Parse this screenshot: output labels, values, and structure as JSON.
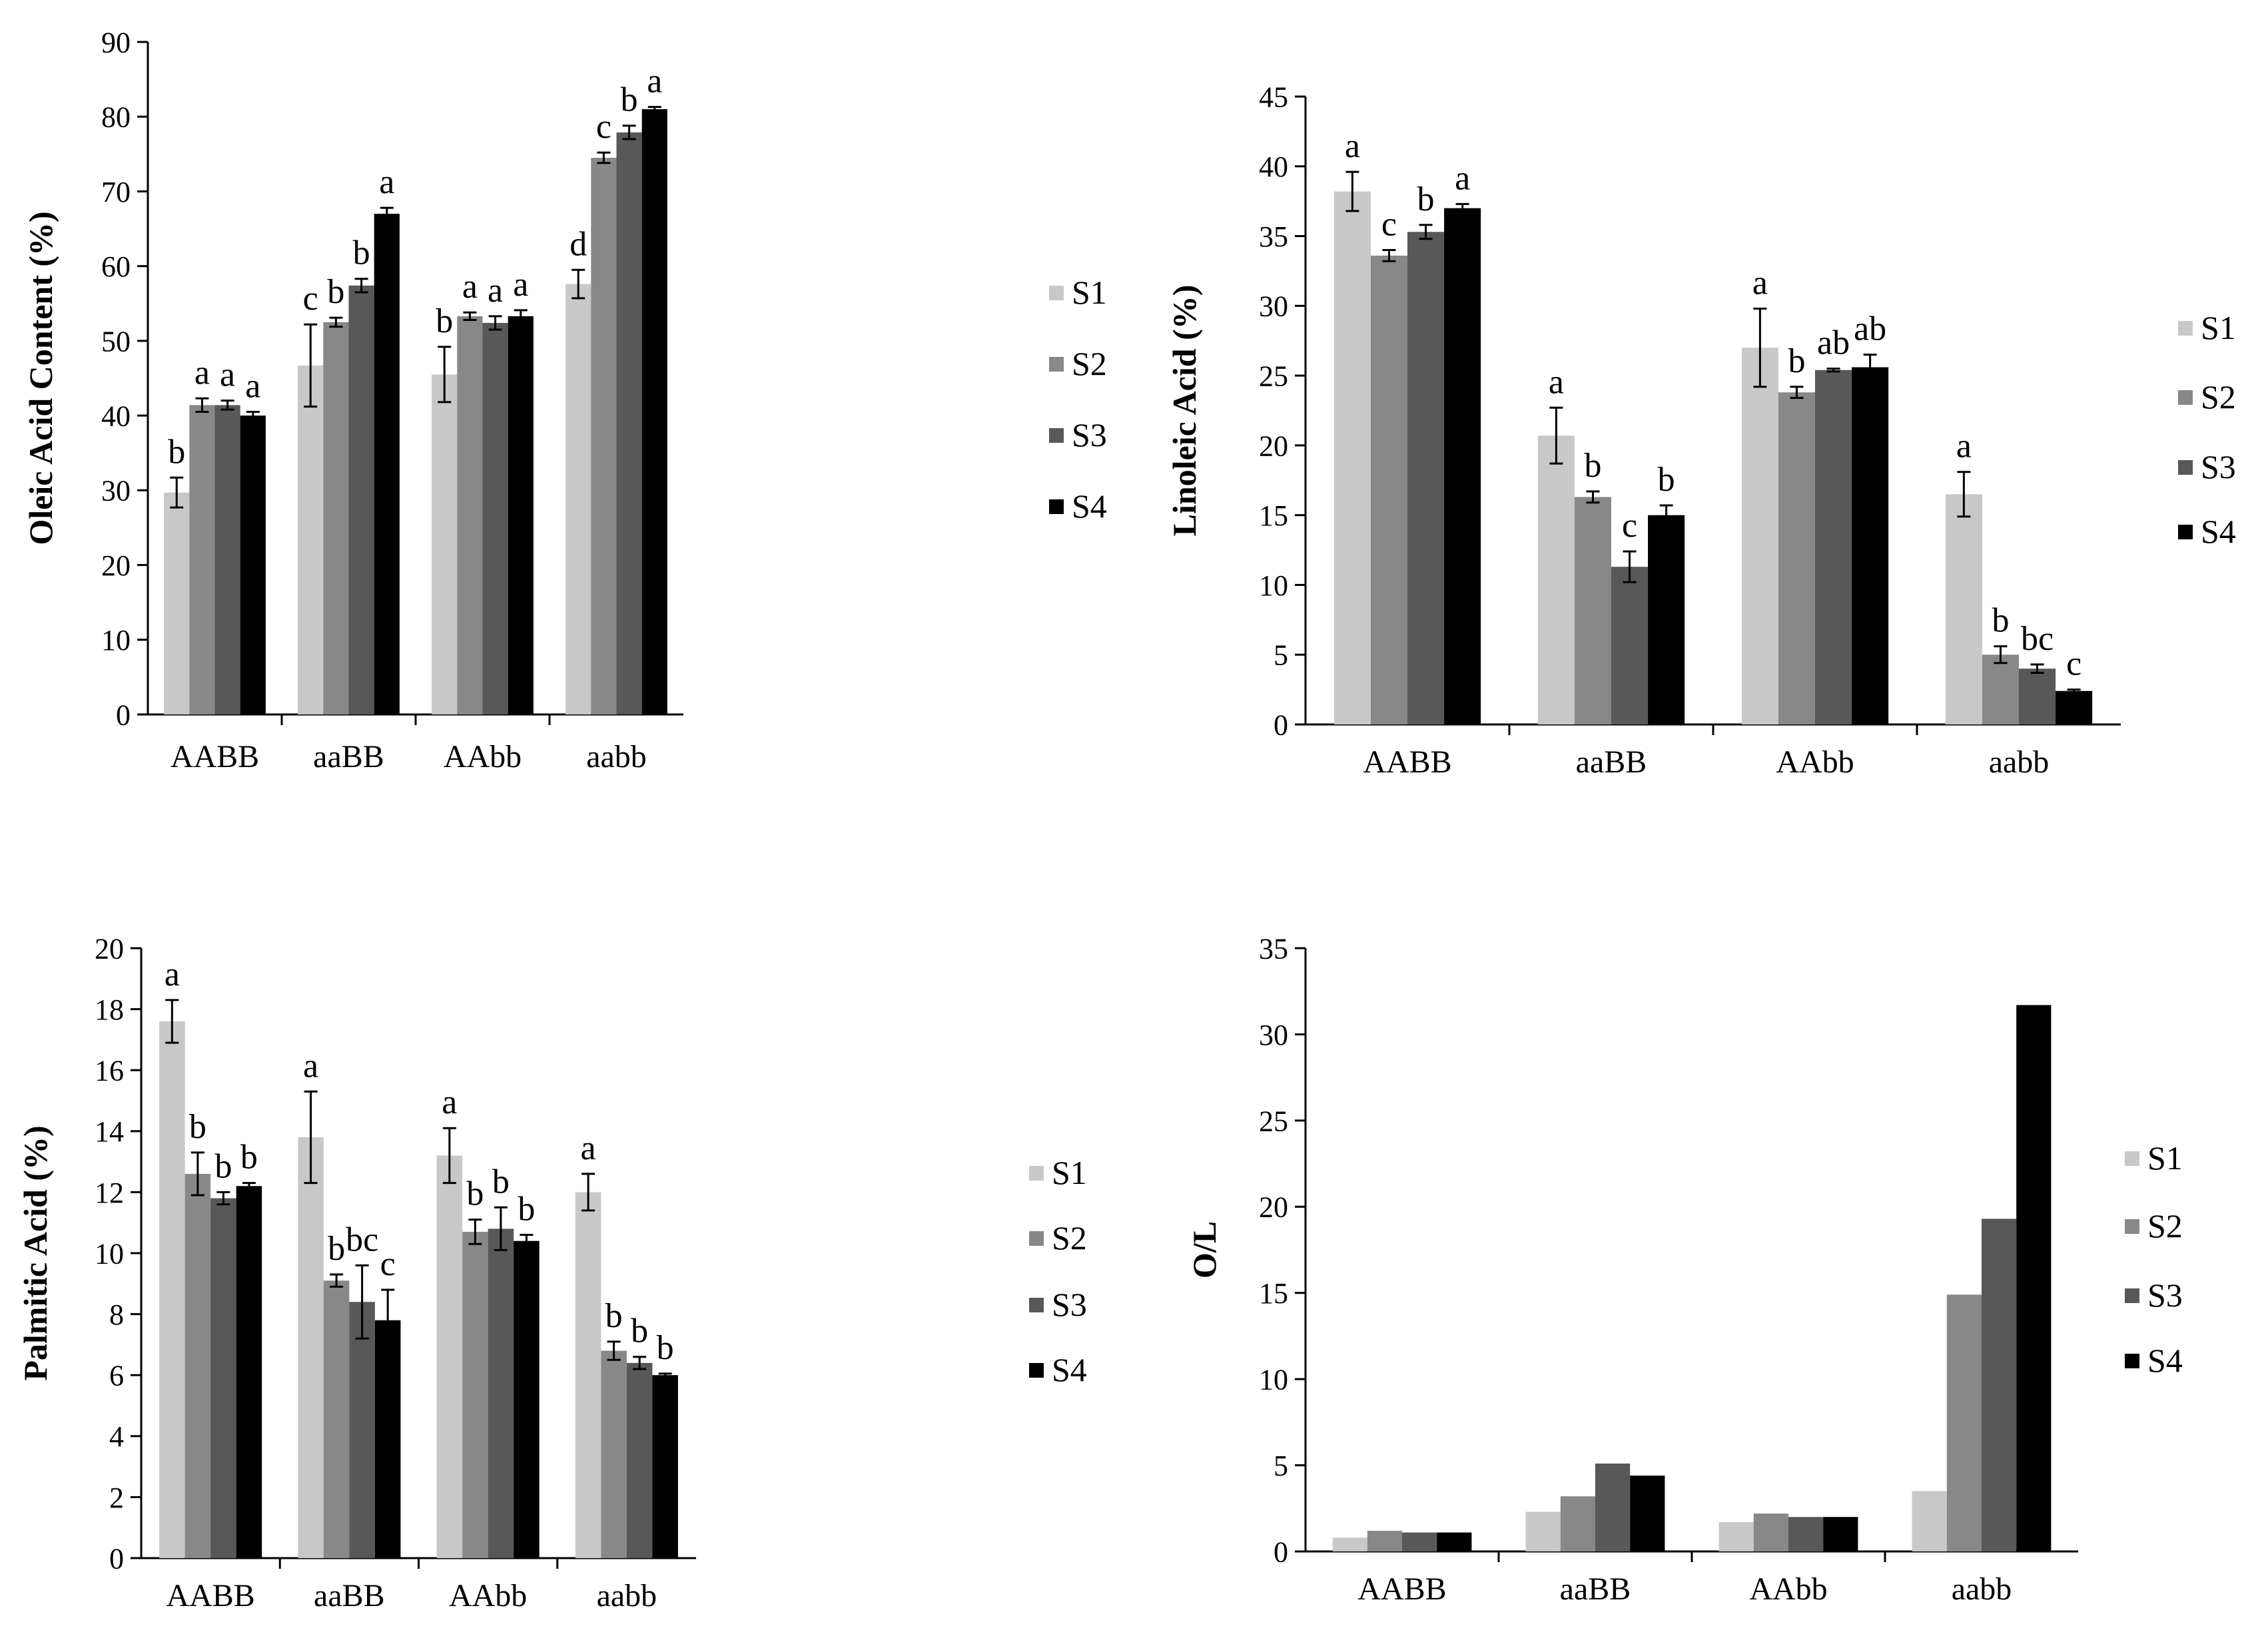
{
  "chart_data": [
    {
      "type": "bar",
      "ylabel": "Oleic Acid Content (%)",
      "categories": [
        "AABB",
        "aaBB",
        "AAbb",
        "aabb"
      ],
      "ylim": [
        0,
        90
      ],
      "ytick_step": 10,
      "series": [
        {
          "name": "S1",
          "color": "#c8c8c8",
          "values": [
            29.7,
            46.7,
            45.5,
            57.6
          ],
          "errors": [
            2.0,
            5.5,
            3.7,
            1.9
          ],
          "letters": [
            "b",
            "c",
            "b",
            "d"
          ]
        },
        {
          "name": "S2",
          "color": "#888888",
          "values": [
            41.4,
            52.5,
            53.3,
            74.5
          ],
          "errors": [
            0.9,
            0.6,
            0.5,
            0.7
          ],
          "letters": [
            "a",
            "b",
            "a",
            "c"
          ]
        },
        {
          "name": "S3",
          "color": "#585858",
          "values": [
            41.4,
            57.4,
            52.4,
            77.9
          ],
          "errors": [
            0.6,
            0.9,
            0.9,
            0.9
          ],
          "letters": [
            "a",
            "b",
            "a",
            "b"
          ]
        },
        {
          "name": "S4",
          "color": "#000000",
          "values": [
            40.0,
            67.0,
            53.3,
            81.0
          ],
          "errors": [
            0.5,
            0.8,
            0.8,
            0.3
          ],
          "letters": [
            "a",
            "a",
            "a",
            "a"
          ]
        }
      ]
    },
    {
      "type": "bar",
      "ylabel": "Linoleic Acid (%)",
      "categories": [
        "AABB",
        "aaBB",
        "AAbb",
        "aabb"
      ],
      "ylim": [
        0,
        45
      ],
      "ytick_step": 5,
      "series": [
        {
          "name": "S1",
          "color": "#c8c8c8",
          "values": [
            38.2,
            20.7,
            27.0,
            16.5
          ],
          "errors": [
            1.4,
            2.0,
            2.8,
            1.6
          ],
          "letters": [
            "a",
            "a",
            "a",
            "a"
          ]
        },
        {
          "name": "S2",
          "color": "#888888",
          "values": [
            33.6,
            16.3,
            23.8,
            5.0
          ],
          "errors": [
            0.4,
            0.4,
            0.4,
            0.6
          ],
          "letters": [
            "c",
            "b",
            "b",
            "b"
          ]
        },
        {
          "name": "S3",
          "color": "#585858",
          "values": [
            35.3,
            11.3,
            25.4,
            4.0
          ],
          "errors": [
            0.5,
            1.1,
            0.1,
            0.3
          ],
          "letters": [
            "b",
            "c",
            "ab",
            "bc"
          ]
        },
        {
          "name": "S4",
          "color": "#000000",
          "values": [
            37.0,
            15.0,
            25.6,
            2.4
          ],
          "errors": [
            0.3,
            0.7,
            0.9,
            0.1
          ],
          "letters": [
            "a",
            "b",
            "ab",
            "c"
          ]
        }
      ]
    },
    {
      "type": "bar",
      "ylabel": "Palmitic Acid (%)",
      "categories": [
        "AABB",
        "aaBB",
        "AAbb",
        "aabb"
      ],
      "ylim": [
        0,
        20
      ],
      "ytick_step": 2,
      "series": [
        {
          "name": "S1",
          "color": "#c8c8c8",
          "values": [
            17.6,
            13.8,
            13.2,
            12.0
          ],
          "errors": [
            0.7,
            1.5,
            0.9,
            0.6
          ],
          "letters": [
            "a",
            "a",
            "a",
            "a"
          ]
        },
        {
          "name": "S2",
          "color": "#888888",
          "values": [
            12.6,
            9.1,
            10.7,
            6.8
          ],
          "errors": [
            0.7,
            0.2,
            0.4,
            0.3
          ],
          "letters": [
            "b",
            "b",
            "b",
            "b"
          ]
        },
        {
          "name": "S3",
          "color": "#585858",
          "values": [
            11.8,
            8.4,
            10.8,
            6.4
          ],
          "errors": [
            0.2,
            1.2,
            0.7,
            0.2
          ],
          "letters": [
            "b",
            "bc",
            "b",
            "b"
          ]
        },
        {
          "name": "S4",
          "color": "#000000",
          "values": [
            12.2,
            7.8,
            10.4,
            6.0
          ],
          "errors": [
            0.1,
            1.0,
            0.2,
            0.05
          ],
          "letters": [
            "b",
            "c",
            "b",
            "b"
          ]
        }
      ]
    },
    {
      "type": "bar",
      "ylabel": "O/L",
      "categories": [
        "AABB",
        "aaBB",
        "AAbb",
        "aabb"
      ],
      "ylim": [
        0,
        35
      ],
      "ytick_step": 5,
      "series": [
        {
          "name": "S1",
          "color": "#c8c8c8",
          "values": [
            0.8,
            2.3,
            1.7,
            3.5
          ],
          "errors": [],
          "letters": []
        },
        {
          "name": "S2",
          "color": "#888888",
          "values": [
            1.2,
            3.2,
            2.2,
            14.9
          ],
          "errors": [],
          "letters": []
        },
        {
          "name": "S3",
          "color": "#585858",
          "values": [
            1.1,
            5.1,
            2.0,
            19.3
          ],
          "errors": [],
          "letters": []
        },
        {
          "name": "S4",
          "color": "#000000",
          "values": [
            1.1,
            4.4,
            2.0,
            31.7
          ],
          "errors": [],
          "letters": []
        }
      ]
    }
  ]
}
